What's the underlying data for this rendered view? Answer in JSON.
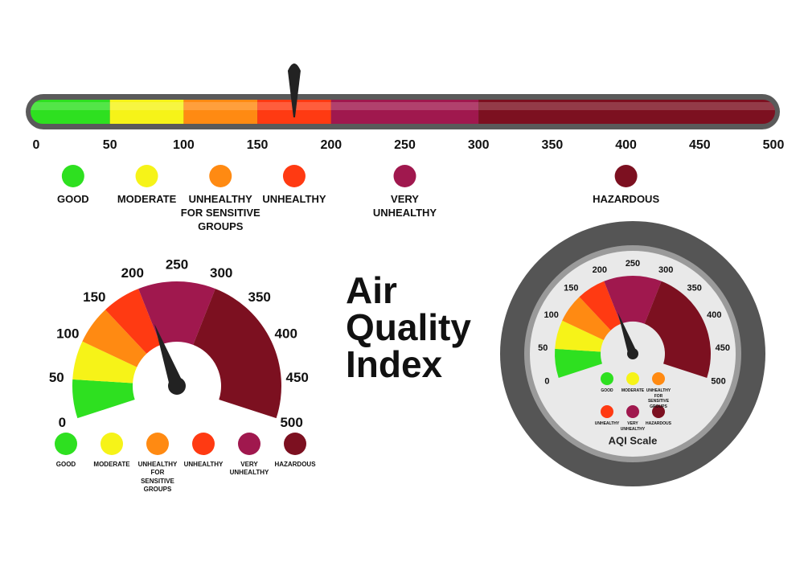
{
  "title": [
    "Air",
    "Quality",
    "Index"
  ],
  "categories": [
    {
      "label": "GOOD",
      "color": "#2ee020",
      "from": 0,
      "to": 50
    },
    {
      "label": "MODERATE",
      "color": "#f6f318",
      "from": 50,
      "to": 100
    },
    {
      "label": "UNHEALTHY FOR SENSITIVE GROUPS",
      "color": "#ff8a12",
      "from": 100,
      "to": 150
    },
    {
      "label": "UNHEALTHY",
      "color": "#ff3a12",
      "from": 150,
      "to": 200
    },
    {
      "label": "VERY UNHEALTHY",
      "color": "#a0184e",
      "from": 200,
      "to": 300
    },
    {
      "label": "HAZARDOUS",
      "color": "#7c1020",
      "from": 300,
      "to": 500
    }
  ],
  "scale_ticks": [
    0,
    50,
    100,
    150,
    200,
    250,
    300,
    350,
    400,
    450,
    500
  ],
  "pointers": {
    "bar": 175,
    "left_gauge": 204,
    "right_gauge": 204
  },
  "gauge_label": "AQI Scale"
}
